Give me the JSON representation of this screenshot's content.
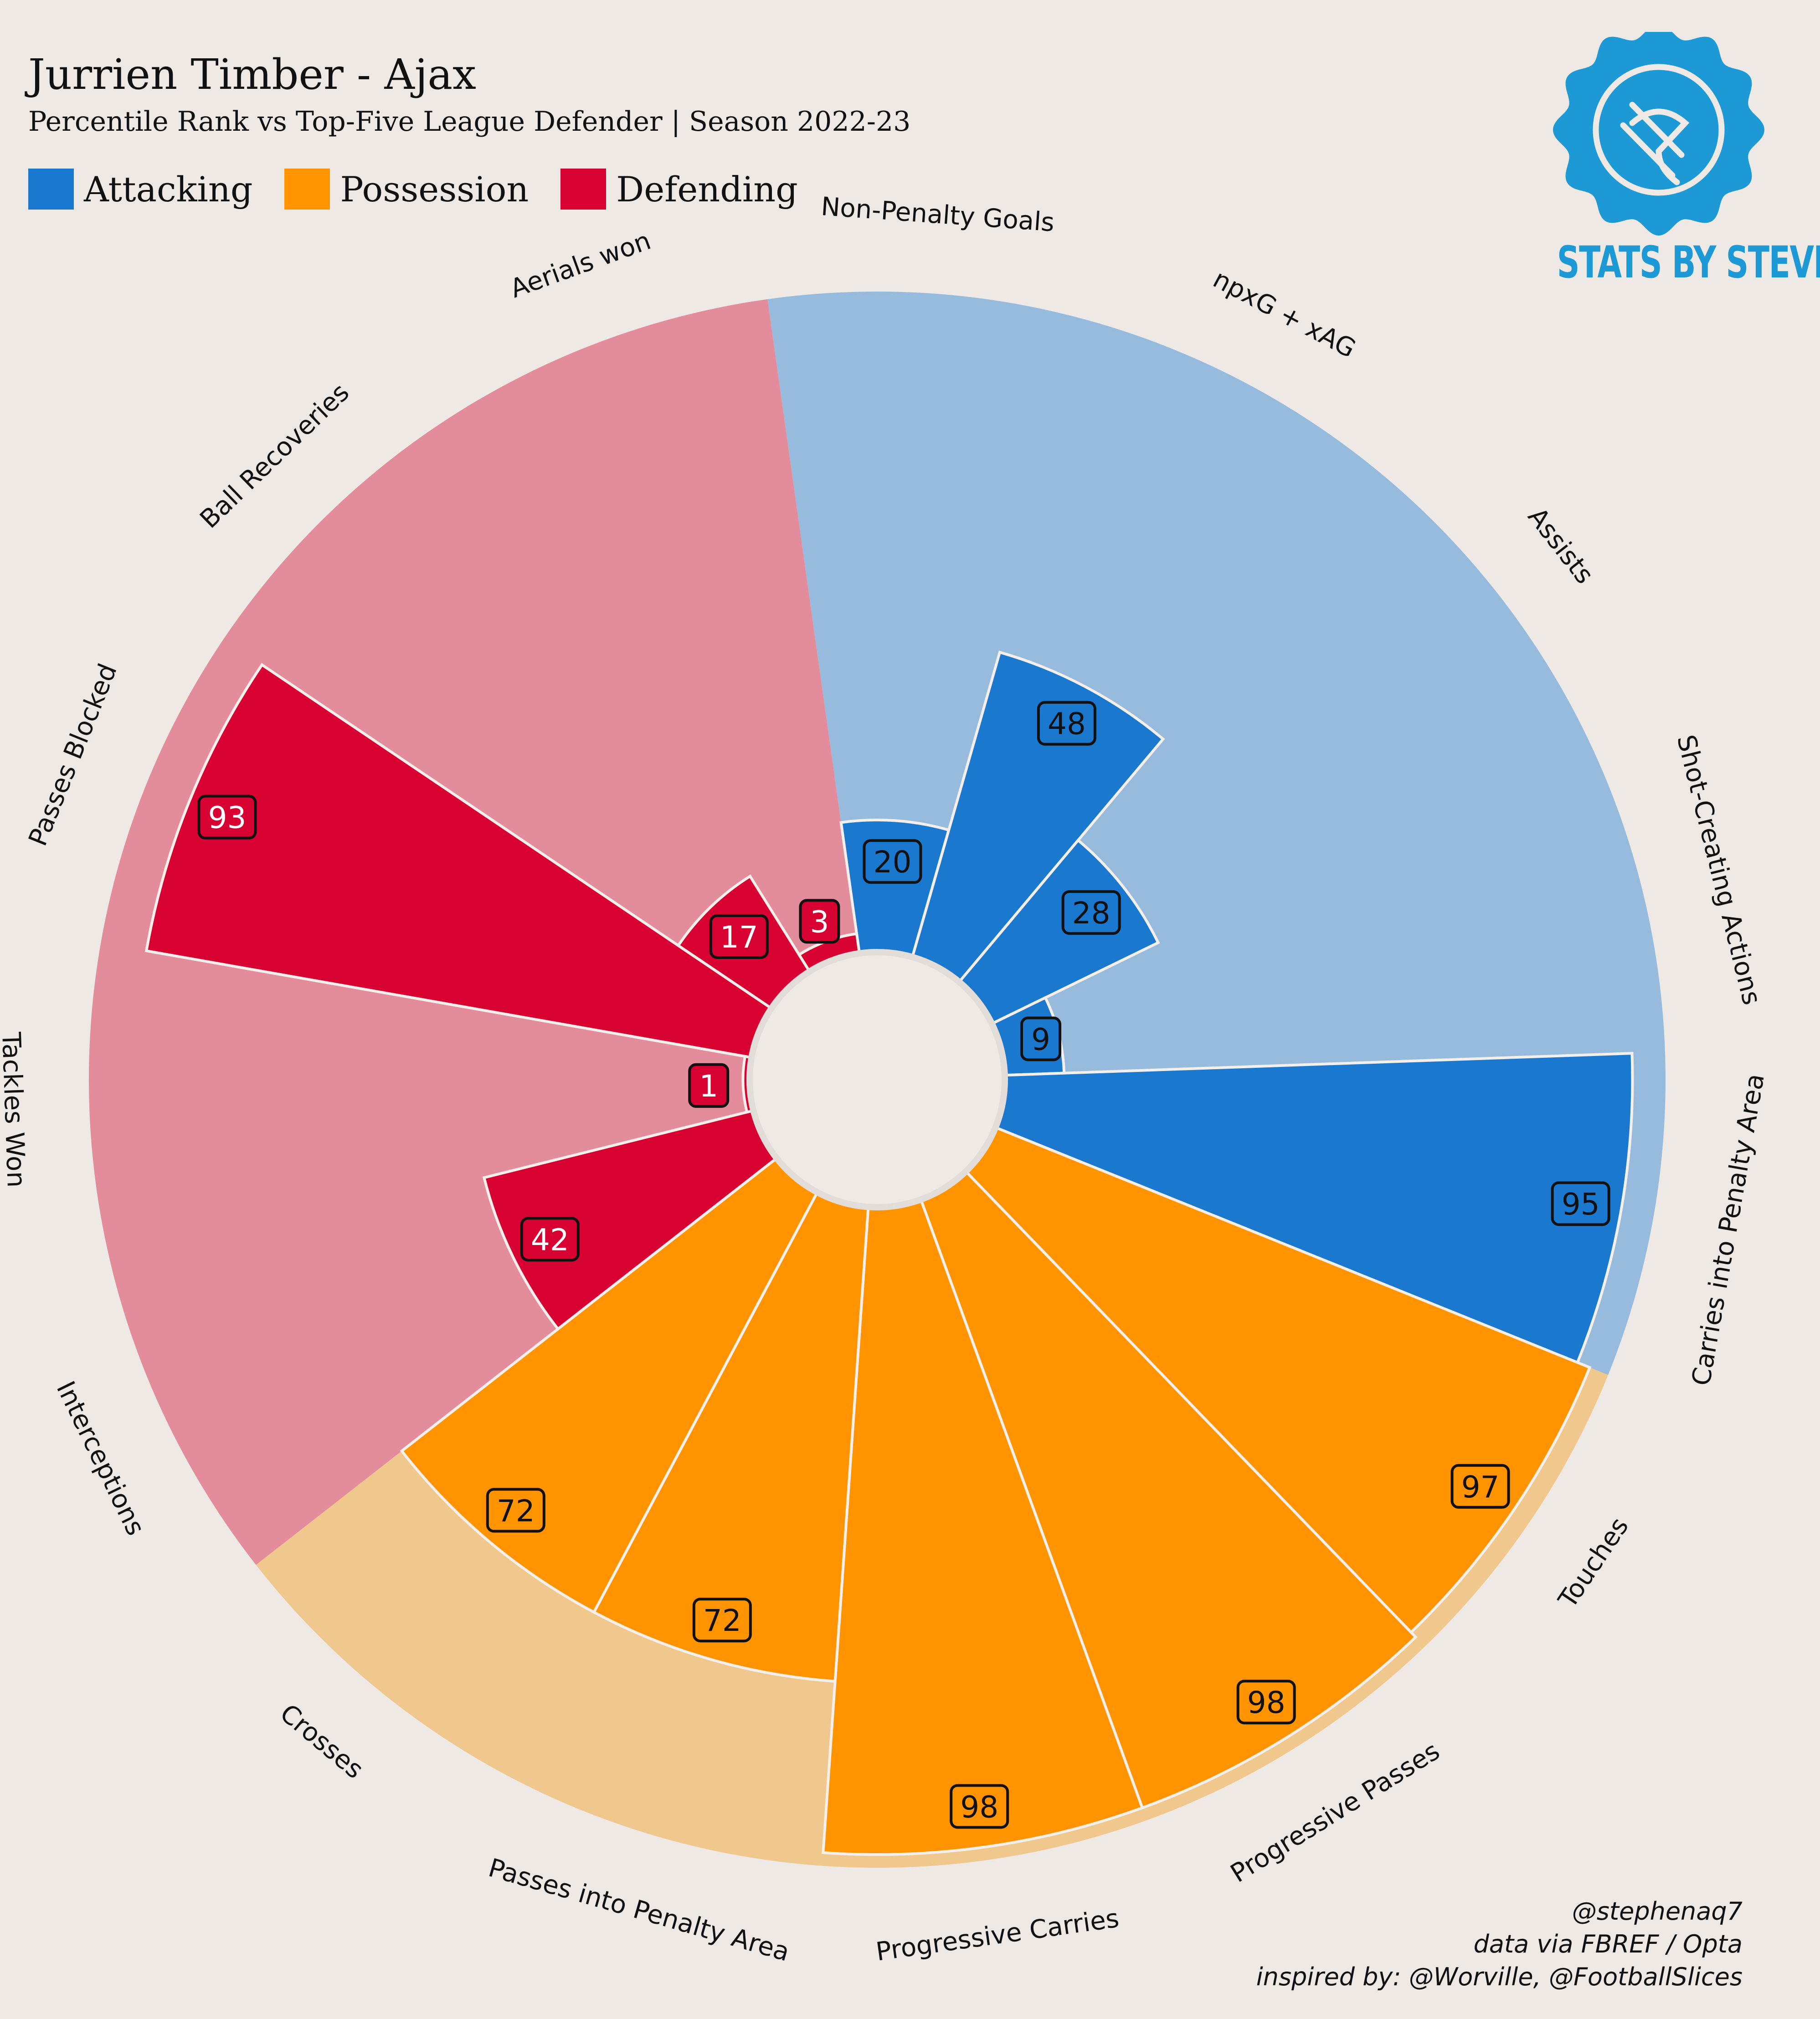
{
  "header": {
    "title": "Jurrien Timber - Ajax",
    "subtitle": "Percentile Rank vs Top-Five League Defender | Season 2022-23"
  },
  "legend": [
    {
      "label": "Attacking",
      "color": "#1b78cf"
    },
    {
      "label": "Possession",
      "color": "#ff9300"
    },
    {
      "label": "Defending",
      "color": "#d70232"
    }
  ],
  "logo": {
    "text": "STATS BY STEVE",
    "color": "#1d9ad6",
    "icon": "stats-by-steve-badge-icon"
  },
  "credits": [
    "@stephenaq7",
    "data via FBREF / Opta",
    "inspired by: @Worville, @FootballSlices"
  ],
  "chart_data": {
    "type": "radial-bar",
    "rlim": [
      0,
      100
    ],
    "groups": [
      {
        "name": "Attacking",
        "color": "#1b78cf",
        "bg_color": "#97bbdd"
      },
      {
        "name": "Possession",
        "color": "#ff9300",
        "bg_color": "#f0c88e"
      },
      {
        "name": "Defending",
        "color": "#d70232",
        "bg_color": "#e38d9c"
      }
    ],
    "categories": [
      "Non-Penalty Goals",
      "npxG + xAG",
      "Assists",
      "Shot-Creating Actions",
      "Carries into Penalty Area",
      "Touches",
      "Progressive Passes",
      "Progressive Carries",
      "Passes into Penalty Area",
      "Crosses",
      "Interceptions",
      "Tackles Won",
      "Passes Blocked",
      "Ball Recoveries",
      "Aerials won"
    ],
    "values": [
      20,
      48,
      28,
      9,
      95,
      97,
      98,
      98,
      72,
      72,
      42,
      1,
      93,
      17,
      3
    ],
    "category_group": [
      "Attacking",
      "Attacking",
      "Attacking",
      "Attacking",
      "Attacking",
      "Possession",
      "Possession",
      "Possession",
      "Possession",
      "Possession",
      "Defending",
      "Defending",
      "Defending",
      "Defending",
      "Defending"
    ],
    "value_labels": [
      "20",
      "48",
      "28",
      "9",
      "95",
      "97",
      "98",
      "98",
      "72",
      "72",
      "42",
      "1",
      "93",
      "17",
      "3"
    ]
  }
}
